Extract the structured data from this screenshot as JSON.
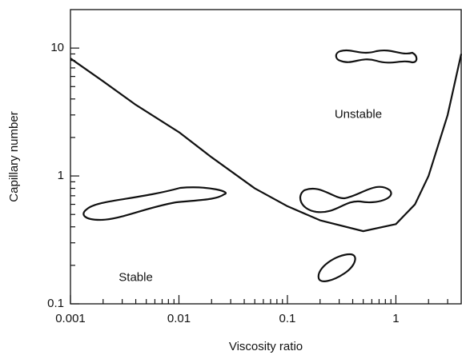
{
  "chart_data": {
    "type": "line",
    "x_label": "Viscosity ratio",
    "y_label": "Capillary number",
    "xscale": "log",
    "yscale": "log",
    "xlim": [
      0.001,
      4
    ],
    "ylim": [
      0.1,
      20
    ],
    "xticks": [
      0.001,
      0.01,
      0.1,
      1
    ],
    "yticks": [
      0.1,
      1,
      10
    ],
    "x": [
      0.001,
      0.002,
      0.004,
      0.01,
      0.02,
      0.05,
      0.1,
      0.2,
      0.5,
      1,
      1.5,
      2,
      3,
      4
    ],
    "series": [
      {
        "name": null,
        "color": "#111111",
        "values": [
          8.3,
          5.5,
          3.6,
          2.2,
          1.4,
          0.8,
          0.58,
          0.45,
          0.37,
          0.42,
          0.6,
          1.0,
          3.0,
          9.0
        ]
      }
    ],
    "annotations": [
      {
        "text": "Unstable",
        "x": 0.45,
        "y": 3.0
      },
      {
        "text": "Stable",
        "x": 0.004,
        "y": 0.16
      }
    ]
  }
}
